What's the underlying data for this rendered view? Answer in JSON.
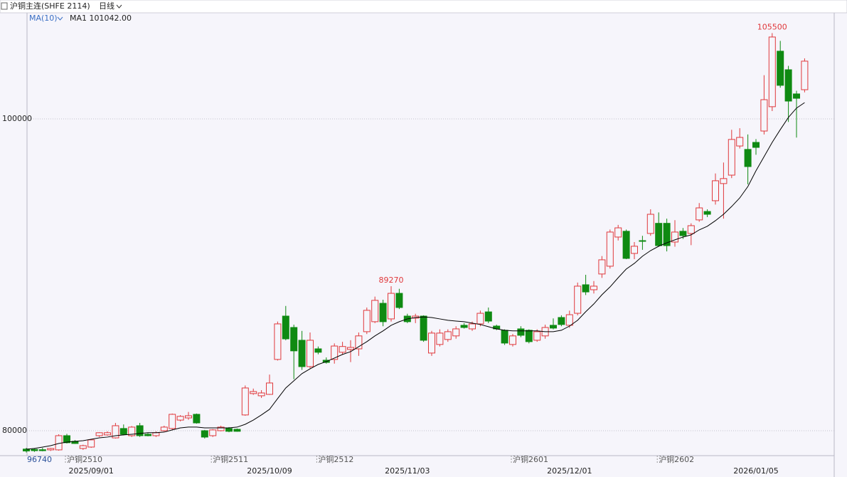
{
  "chart_data": {
    "type": "candlestick",
    "title": "沪铜主连(SHFE 2114)",
    "period": "日线",
    "ma": {
      "name": "MA(10)",
      "color": "#000000",
      "legend_color": "#3a6fc4",
      "value_label": "MA1 101042.00",
      "values": [
        78810,
        78860,
        78950,
        79040,
        79180,
        79270,
        79320,
        79360,
        79450,
        79540,
        79590,
        79680,
        79730,
        79770,
        79820,
        79870,
        79870,
        79910,
        80050,
        80180,
        80230,
        80230,
        80180,
        80180,
        80180,
        80180,
        80230,
        80410,
        80680,
        81010,
        81370,
        82060,
        82740,
        83200,
        83660,
        83970,
        84250,
        84430,
        84660,
        84890,
        85070,
        85390,
        85710,
        86080,
        86400,
        86760,
        86990,
        87170,
        87260,
        87300,
        87260,
        87170,
        87080,
        87030,
        86990,
        86900,
        86810,
        86670,
        86530,
        86440,
        86400,
        86400,
        86400,
        86400,
        86350,
        86350,
        86440,
        86710,
        87080,
        87630,
        88130,
        88720,
        89220,
        89810,
        90370,
        90730,
        91190,
        91550,
        91830,
        92050,
        92240,
        92420,
        92560,
        92880,
        93110,
        93470,
        93880,
        94380,
        94930,
        95660,
        96670,
        97580,
        98490,
        99310,
        100090,
        100690,
        101042
      ]
    },
    "up_color": "#e0383b",
    "down_color": "#0f8a12",
    "categories": [
      null,
      null,
      null,
      null,
      null,
      null,
      null,
      null,
      "2025/09/01",
      null,
      null,
      null,
      null,
      null,
      null,
      null,
      null,
      null,
      null,
      null,
      null,
      null,
      null,
      null,
      null,
      null,
      null,
      null,
      null,
      null,
      "2025/10/09",
      null,
      null,
      null,
      null,
      null,
      null,
      null,
      null,
      null,
      null,
      null,
      null,
      null,
      null,
      null,
      null,
      "2025/11/03",
      null,
      null,
      null,
      null,
      null,
      null,
      null,
      null,
      null,
      null,
      null,
      null,
      null,
      null,
      null,
      null,
      null,
      null,
      null,
      "2025/12/01",
      null,
      null,
      null,
      null,
      null,
      null,
      null,
      null,
      null,
      null,
      null,
      null,
      null,
      null,
      null,
      null,
      null,
      null,
      null,
      null,
      null,
      null,
      "2026/01/05",
      null,
      null,
      null,
      null,
      null,
      null
    ],
    "contracts": [
      null,
      null,
      null,
      null,
      null,
      "沪铜2510",
      null,
      null,
      null,
      null,
      null,
      null,
      null,
      null,
      null,
      null,
      null,
      null,
      null,
      null,
      null,
      null,
      null,
      "沪铜2511",
      null,
      null,
      null,
      null,
      null,
      null,
      null,
      null,
      null,
      null,
      null,
      null,
      "沪铜2512",
      null,
      null,
      null,
      null,
      null,
      null,
      null,
      null,
      null,
      null,
      null,
      null,
      null,
      null,
      null,
      null,
      null,
      null,
      null,
      null,
      null,
      null,
      null,
      "沪铜2601",
      null,
      null,
      null,
      null,
      null,
      null,
      null,
      null,
      null,
      null,
      null,
      null,
      null,
      null,
      null,
      null,
      null,
      "沪铜2602",
      null,
      null,
      null,
      null,
      null,
      null,
      null,
      null,
      null,
      null,
      null,
      null,
      null,
      null,
      null,
      null,
      null,
      null
    ],
    "ohlc": [
      [
        78820,
        78900,
        78600,
        78700
      ],
      [
        78800,
        78860,
        78640,
        78720
      ],
      [
        78780,
        78900,
        78680,
        78720
      ],
      [
        78770,
        78900,
        78700,
        78860
      ],
      [
        78770,
        79770,
        78720,
        79680
      ],
      [
        79680,
        79800,
        79180,
        79230
      ],
      [
        79320,
        79400,
        79150,
        79180
      ],
      [
        78860,
        79100,
        78770,
        79040
      ],
      [
        78950,
        79450,
        78900,
        79410
      ],
      [
        79680,
        79900,
        79600,
        79870
      ],
      [
        79730,
        79960,
        79680,
        79870
      ],
      [
        79540,
        80500,
        79500,
        80320
      ],
      [
        80140,
        80400,
        79700,
        79770
      ],
      [
        79680,
        80300,
        79600,
        80230
      ],
      [
        80320,
        80500,
        79600,
        79680
      ],
      [
        79770,
        79850,
        79640,
        79680
      ],
      [
        79680,
        79960,
        79600,
        79870
      ],
      [
        80000,
        80320,
        79950,
        80230
      ],
      [
        80140,
        81100,
        80050,
        81050
      ],
      [
        80680,
        81000,
        80600,
        80920
      ],
      [
        80820,
        81200,
        80700,
        80960
      ],
      [
        81050,
        81100,
        80450,
        80500
      ],
      [
        80000,
        80050,
        79500,
        79590
      ],
      [
        79680,
        80100,
        79600,
        80050
      ],
      [
        80000,
        80320,
        79960,
        80230
      ],
      [
        80140,
        80230,
        79900,
        79960
      ],
      [
        80090,
        80140,
        79930,
        79960
      ],
      [
        81010,
        82900,
        80960,
        82740
      ],
      [
        82380,
        82700,
        82300,
        82510
      ],
      [
        82240,
        82600,
        82100,
        82420
      ],
      [
        82330,
        83600,
        82300,
        83060
      ],
      [
        84570,
        87000,
        84500,
        86850
      ],
      [
        87350,
        88000,
        85800,
        85890
      ],
      [
        86620,
        86800,
        83300,
        85120
      ],
      [
        85800,
        86400,
        83900,
        84110
      ],
      [
        84110,
        86300,
        84000,
        85800
      ],
      [
        85250,
        85400,
        84900,
        85030
      ],
      [
        84520,
        84700,
        84300,
        84380
      ],
      [
        84570,
        85600,
        84300,
        85430
      ],
      [
        85030,
        85700,
        84900,
        85400
      ],
      [
        85210,
        85800,
        84400,
        85340
      ],
      [
        85250,
        86300,
        84800,
        86080
      ],
      [
        86350,
        87900,
        86200,
        87720
      ],
      [
        86990,
        88600,
        86900,
        88360
      ],
      [
        88170,
        88400,
        86700,
        86990
      ],
      [
        87170,
        89270,
        87000,
        88810
      ],
      [
        88810,
        89100,
        87800,
        87900
      ],
      [
        87350,
        87500,
        86900,
        86990
      ],
      [
        87220,
        87500,
        86900,
        87350
      ],
      [
        87350,
        87400,
        85700,
        85800
      ],
      [
        84980,
        86400,
        84800,
        86260
      ],
      [
        85530,
        86500,
        85400,
        86260
      ],
      [
        85850,
        86500,
        85700,
        86350
      ],
      [
        86080,
        86700,
        85900,
        86530
      ],
      [
        86760,
        86900,
        86550,
        86620
      ],
      [
        86530,
        87000,
        86400,
        86850
      ],
      [
        86850,
        87700,
        86700,
        87530
      ],
      [
        87620,
        87900,
        86900,
        87030
      ],
      [
        86710,
        86800,
        86450,
        86530
      ],
      [
        86440,
        86500,
        85500,
        85620
      ],
      [
        85530,
        86200,
        85400,
        86080
      ],
      [
        86530,
        86700,
        86000,
        86120
      ],
      [
        86440,
        86500,
        85600,
        85710
      ],
      [
        85800,
        86500,
        85700,
        86350
      ],
      [
        86080,
        86800,
        85900,
        86620
      ],
      [
        86760,
        87200,
        86500,
        86580
      ],
      [
        87260,
        87400,
        86700,
        86810
      ],
      [
        86760,
        87700,
        86600,
        87440
      ],
      [
        87530,
        89500,
        87400,
        89270
      ],
      [
        89360,
        90000,
        88700,
        88900
      ],
      [
        89040,
        89600,
        88800,
        89270
      ],
      [
        90050,
        91200,
        89800,
        90960
      ],
      [
        90550,
        92900,
        90400,
        92740
      ],
      [
        92420,
        93200,
        92200,
        93010
      ],
      [
        92790,
        92900,
        91000,
        91050
      ],
      [
        91370,
        92100,
        91000,
        91830
      ],
      [
        92190,
        92500,
        91600,
        92150
      ],
      [
        92650,
        94200,
        92500,
        93880
      ],
      [
        93300,
        94000,
        91800,
        91870
      ],
      [
        93300,
        93600,
        91500,
        91870
      ],
      [
        92100,
        93500,
        91800,
        92740
      ],
      [
        92790,
        93000,
        92300,
        92510
      ],
      [
        92650,
        93300,
        91900,
        93150
      ],
      [
        93520,
        94600,
        93400,
        94290
      ],
      [
        94060,
        94200,
        93700,
        93880
      ],
      [
        94750,
        96500,
        94500,
        96030
      ],
      [
        95850,
        97200,
        93600,
        96170
      ],
      [
        96390,
        99300,
        96200,
        98680
      ],
      [
        98260,
        99400,
        98100,
        98810
      ],
      [
        98040,
        99000,
        95800,
        96940
      ],
      [
        98490,
        98700,
        97700,
        98170
      ],
      [
        99220,
        102800,
        99000,
        101230
      ],
      [
        100780,
        105500,
        100500,
        105250
      ],
      [
        104340,
        105000,
        102000,
        102150
      ],
      [
        103150,
        103400,
        99800,
        101140
      ],
      [
        101600,
        101800,
        98800,
        101320
      ],
      [
        101870,
        103880,
        101700,
        103700
      ]
    ],
    "annotations": [
      {
        "value": 105500,
        "label": "105500"
      },
      {
        "value": 89270,
        "label": "89270"
      }
    ],
    "corner_label": "96740",
    "ylim": [
      78400,
      106710
    ],
    "yticks": [
      80000,
      100000
    ],
    "grid": true
  }
}
